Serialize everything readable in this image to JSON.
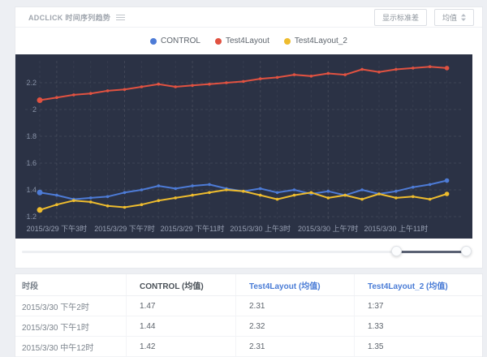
{
  "header": {
    "title": "ADCLICK 时间序列趋势",
    "std_dev_button": "显示标准差",
    "metric_dropdown": "均值"
  },
  "chart_data": {
    "type": "line",
    "title": "ADCLICK 时间序列趋势",
    "background": "#2b3245",
    "grid": true,
    "legend_position": "top",
    "y_ticks": [
      "2.2",
      "2",
      "1.8",
      "1.6",
      "1.4",
      "1.2"
    ],
    "ylim": [
      1.16,
      2.41
    ],
    "x_ticks": [
      {
        "index": 1,
        "label": "2015/3/29 下午3时"
      },
      {
        "index": 5,
        "label": "2015/3/29 下午7时"
      },
      {
        "index": 9,
        "label": "2015/3/29 下午11时"
      },
      {
        "index": 13,
        "label": "2015/3/30 上午3时"
      },
      {
        "index": 17,
        "label": "2015/3/30 上午7时"
      },
      {
        "index": 21,
        "label": "2015/3/30 上午11时"
      }
    ],
    "series": [
      {
        "name": "CONTROL",
        "color": "#4d7bd6",
        "values": [
          1.38,
          1.36,
          1.33,
          1.34,
          1.35,
          1.38,
          1.4,
          1.43,
          1.41,
          1.43,
          1.44,
          1.41,
          1.39,
          1.41,
          1.38,
          1.4,
          1.37,
          1.39,
          1.36,
          1.4,
          1.37,
          1.39,
          1.42,
          1.44,
          1.47
        ]
      },
      {
        "name": "Test4Layout",
        "color": "#e15241",
        "values": [
          2.07,
          2.09,
          2.11,
          2.12,
          2.14,
          2.15,
          2.17,
          2.19,
          2.17,
          2.18,
          2.19,
          2.2,
          2.21,
          2.23,
          2.24,
          2.26,
          2.25,
          2.27,
          2.26,
          2.3,
          2.28,
          2.3,
          2.31,
          2.32,
          2.31
        ]
      },
      {
        "name": "Test4Layout_2",
        "color": "#eebc2e",
        "values": [
          1.25,
          1.29,
          1.32,
          1.31,
          1.28,
          1.27,
          1.29,
          1.32,
          1.34,
          1.36,
          1.38,
          1.4,
          1.39,
          1.36,
          1.33,
          1.36,
          1.38,
          1.34,
          1.36,
          1.33,
          1.37,
          1.34,
          1.35,
          1.33,
          1.37
        ]
      }
    ]
  },
  "table": {
    "headers": [
      {
        "label": "时段",
        "color": "#7b838c"
      },
      {
        "label": "CONTROL (均值)",
        "color": "#4a5158"
      },
      {
        "label": "Test4Layout (均值)",
        "color": "#4a7cd6"
      },
      {
        "label": "Test4Layout_2 (均值)",
        "color": "#4a7cd6"
      }
    ],
    "rows": [
      [
        "2015/3/30 下午2时",
        "1.47",
        "2.31",
        "1:37"
      ],
      [
        "2015/3/30 下午1时",
        "1.44",
        "2.32",
        "1.33"
      ],
      [
        "2015/3/30 中午12时",
        "1.42",
        "2.31",
        "1.35"
      ]
    ]
  }
}
